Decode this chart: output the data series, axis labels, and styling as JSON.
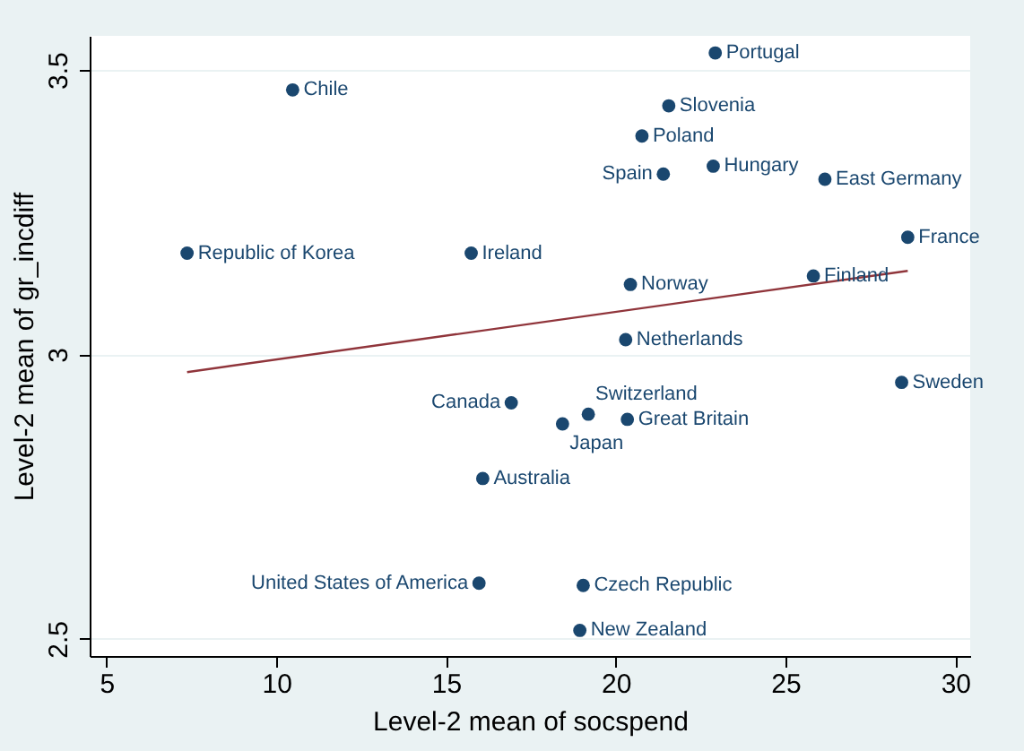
{
  "chart_data": {
    "type": "scatter",
    "xlabel": "Level-2 mean of  socspend",
    "ylabel": "Level-2 mean of gr_incdiff",
    "xlim": [
      4.5,
      30.44
    ],
    "xticks": [
      5,
      10,
      15,
      20,
      25,
      30
    ],
    "ylim": [
      2.47,
      3.56
    ],
    "yticks": [
      2.5,
      3,
      3.5
    ],
    "grid": "y",
    "series": [
      {
        "marker": "circle",
        "color": "#1a476f",
        "x": [
          22.93,
          10.48,
          21.56,
          20.77,
          21.4,
          22.87,
          26.16,
          28.6,
          7.37,
          15.74,
          20.43,
          25.82,
          20.29,
          28.42,
          16.92,
          19.19,
          20.34,
          18.43,
          16.08,
          15.97,
          19.04,
          18.94
        ],
        "values": [
          3.53,
          3.465,
          3.437,
          3.384,
          3.317,
          3.331,
          3.308,
          3.206,
          3.178,
          3.178,
          3.123,
          3.138,
          3.026,
          2.951,
          2.915,
          2.895,
          2.886,
          2.878,
          2.782,
          2.598,
          2.594,
          2.515
        ]
      },
      {
        "type": "line",
        "color": "#90353b",
        "x": [
          7.37,
          28.6
        ],
        "values": [
          2.969,
          3.147
        ]
      }
    ],
    "annotations": [
      {
        "text": "Portugal",
        "x": 22.93,
        "y": 3.53
      },
      {
        "text": "Chile",
        "x": 10.48,
        "y": 3.465
      },
      {
        "text": "Slovenia",
        "x": 21.56,
        "y": 3.437
      },
      {
        "text": "Poland",
        "x": 20.77,
        "y": 3.384
      },
      {
        "text": "Spain",
        "x": 21.4,
        "y": 3.317
      },
      {
        "text": "Hungary",
        "x": 22.87,
        "y": 3.331
      },
      {
        "text": "East Germany",
        "x": 26.16,
        "y": 3.308
      },
      {
        "text": "France",
        "x": 28.6,
        "y": 3.206
      },
      {
        "text": "Republic of Korea",
        "x": 7.37,
        "y": 3.178
      },
      {
        "text": "Ireland",
        "x": 15.74,
        "y": 3.178
      },
      {
        "text": "Norway",
        "x": 20.43,
        "y": 3.123
      },
      {
        "text": "Finland",
        "x": 25.82,
        "y": 3.138
      },
      {
        "text": "Netherlands",
        "x": 20.29,
        "y": 3.026
      },
      {
        "text": "Sweden",
        "x": 28.42,
        "y": 2.951
      },
      {
        "text": "Canada",
        "x": 16.92,
        "y": 2.915
      },
      {
        "text": "Switzerland",
        "x": 19.19,
        "y": 2.895
      },
      {
        "text": "Great Britain",
        "x": 20.34,
        "y": 2.886
      },
      {
        "text": "Japan",
        "x": 18.43,
        "y": 2.878
      },
      {
        "text": "Australia",
        "x": 16.08,
        "y": 2.782
      },
      {
        "text": "United States of America",
        "x": 15.97,
        "y": 2.598
      },
      {
        "text": "Czech Republic",
        "x": 19.04,
        "y": 2.594
      },
      {
        "text": "New Zealand",
        "x": 18.94,
        "y": 2.515
      }
    ]
  }
}
